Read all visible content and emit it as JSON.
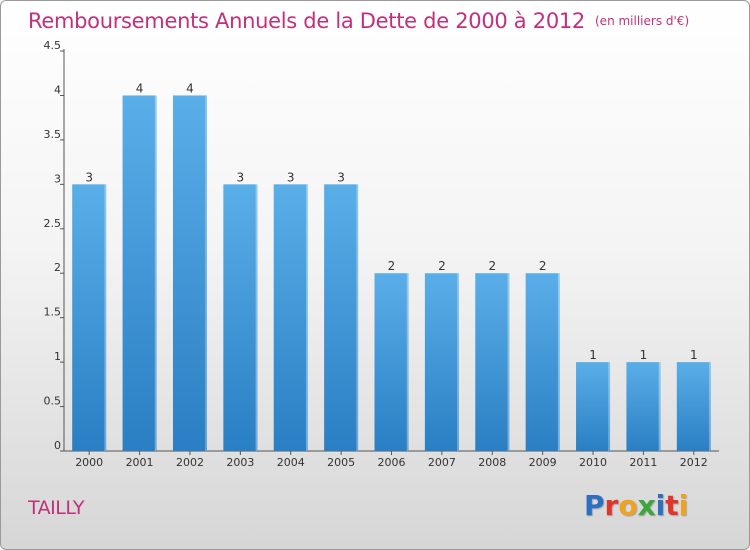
{
  "title": "Remboursements Annuels de la Dette de 2000 à 2012",
  "unit": "(en milliers d'€)",
  "commune": "TAILLY",
  "logo": {
    "letters": [
      "P",
      "r",
      "o",
      "x",
      "i",
      "t",
      "i"
    ],
    "colors": [
      "#2d6fc1",
      "#e0352b",
      "#f0a21d",
      "#3aa63c",
      "#2d6fc1",
      "#e0352b",
      "#f0a21d"
    ]
  },
  "colors": {
    "bar_top": "#5aaee8",
    "bar_bottom": "#2a7fc4",
    "title": "#c2307a"
  },
  "chart_data": {
    "type": "bar",
    "title": "Remboursements Annuels de la Dette de 2000 à 2012",
    "categories": [
      "2000",
      "2001",
      "2002",
      "2003",
      "2004",
      "2005",
      "2006",
      "2007",
      "2008",
      "2009",
      "2010",
      "2011",
      "2012"
    ],
    "values": [
      3,
      4,
      4,
      3,
      3,
      3,
      2,
      2,
      2,
      2,
      1,
      1,
      1
    ],
    "data_labels": [
      "3",
      "4",
      "4",
      "3",
      "3",
      "3",
      "2",
      "2",
      "2",
      "2",
      "1",
      "1",
      "1"
    ],
    "ylim": [
      0,
      4.5
    ],
    "yticks": [
      0,
      0.5,
      1,
      1.5,
      2,
      2.5,
      3,
      3.5,
      4,
      4.5
    ],
    "ytick_labels": [
      "0",
      "0.5",
      "1",
      "1.5",
      "2",
      "2.5",
      "3",
      "3.5",
      "4",
      "4.5"
    ],
    "grid": false,
    "legend": "none"
  }
}
